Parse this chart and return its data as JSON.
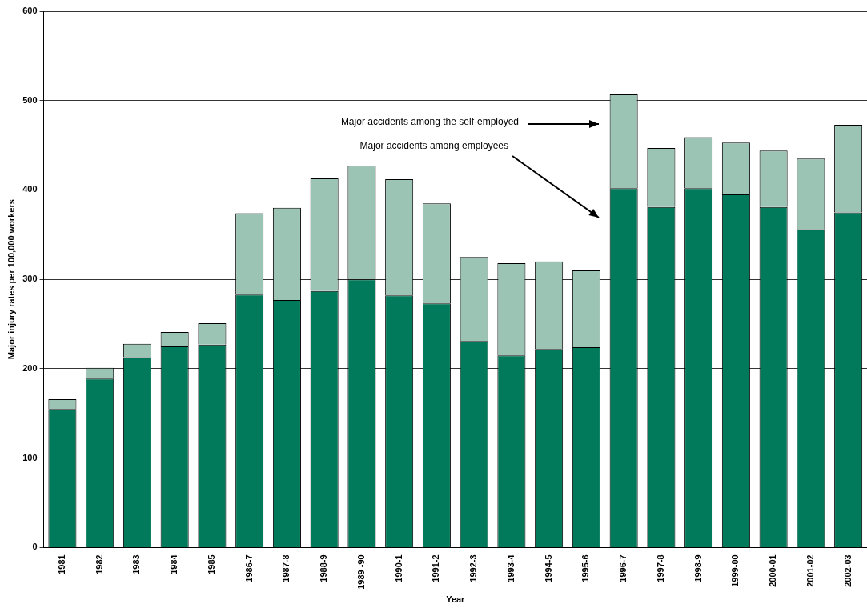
{
  "chart_data": {
    "type": "bar",
    "stacked": true,
    "xlabel": "Year",
    "ylabel": "Major injury rates per 100,000 workers",
    "categories": [
      "1981",
      "1982",
      "1983",
      "1984",
      "1985",
      "1986-7",
      "1987-8",
      "1988-9",
      "1989 -90",
      "1990-1",
      "1991-2",
      "1992-3",
      "1993-4",
      "1994-5",
      "1995-6",
      "1996-7",
      "1997-8",
      "1998-9",
      "1999-00",
      "2000-01",
      "2001-02",
      "2002-03"
    ],
    "series": [
      {
        "color": "#007a5a",
        "values": [
          155,
          189,
          213,
          225,
          227,
          283,
          277,
          287,
          300,
          282,
          273,
          231,
          215,
          222,
          224,
          402,
          381,
          402,
          395,
          381,
          356,
          375
        ]
      },
      {
        "color": "#9cc4b4",
        "values": [
          11,
          12,
          15,
          16,
          24,
          91,
          103,
          126,
          127,
          130,
          112,
          94,
          103,
          98,
          86,
          105,
          66,
          57,
          58,
          63,
          79,
          98
        ]
      }
    ],
    "ylim": [
      0,
      600
    ],
    "yticks": [
      0,
      100,
      200,
      300,
      400,
      500,
      600
    ],
    "grid": "y",
    "legend": false,
    "annotations": [
      "Major accidents among the self-employed",
      "Major accidents among employees"
    ]
  }
}
